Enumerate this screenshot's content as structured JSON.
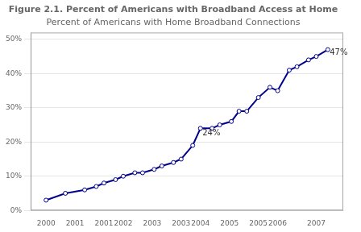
{
  "chart_data": {
    "type": "line",
    "title": "Figure 2.1. Percent of Americans with Broadband Access at Home",
    "subtitle": "Percent of Americans with Home Broadband Connections",
    "x": [
      2000.0,
      2000.5,
      2001.0,
      2001.3,
      2001.5,
      2001.8,
      2002.0,
      2002.3,
      2002.5,
      2002.8,
      2003.0,
      2003.3,
      2003.5,
      2003.8,
      2004.0,
      2004.3,
      2004.5,
      2004.8,
      2005.0,
      2005.2,
      2005.5,
      2005.8,
      2006.0,
      2006.3,
      2006.5,
      2006.8,
      2007.0,
      2007.3
    ],
    "values": [
      3,
      5,
      6,
      7,
      8,
      9,
      10,
      11,
      11,
      12,
      13,
      14,
      15,
      19,
      24,
      24,
      25,
      26,
      29,
      29,
      33,
      36,
      35,
      41,
      42,
      44,
      45,
      47
    ],
    "color": "#00008B",
    "marker": "circle",
    "xlim": [
      1999.6,
      2007.7
    ],
    "xticks": [
      2000,
      {
        "value": 2000.75,
        "label": "2001"
      },
      {
        "value": 2001.5,
        "label": "2001"
      },
      2002,
      {
        "value": 2002.75,
        "label": "2003"
      },
      {
        "value": 2003.5,
        "label": "2003"
      },
      2004,
      {
        "value": 2004.75,
        "label": "2005"
      },
      {
        "value": 2005.5,
        "label": "2005"
      },
      2006,
      2007
    ],
    "ylim": [
      0,
      52
    ],
    "yticks": [
      {
        "value": 0,
        "label": "0%"
      },
      {
        "value": 10,
        "label": "10%"
      },
      {
        "value": 20,
        "label": "20%"
      },
      {
        "value": 30,
        "label": "30%"
      },
      {
        "value": 40,
        "label": "40%"
      },
      {
        "value": 50,
        "label": "50%"
      }
    ],
    "grid": true,
    "annotations": [
      {
        "x": 2004.05,
        "y": 22.5,
        "text": "24%"
      },
      {
        "x": 2007.35,
        "y": 46,
        "text": "47%"
      }
    ]
  }
}
